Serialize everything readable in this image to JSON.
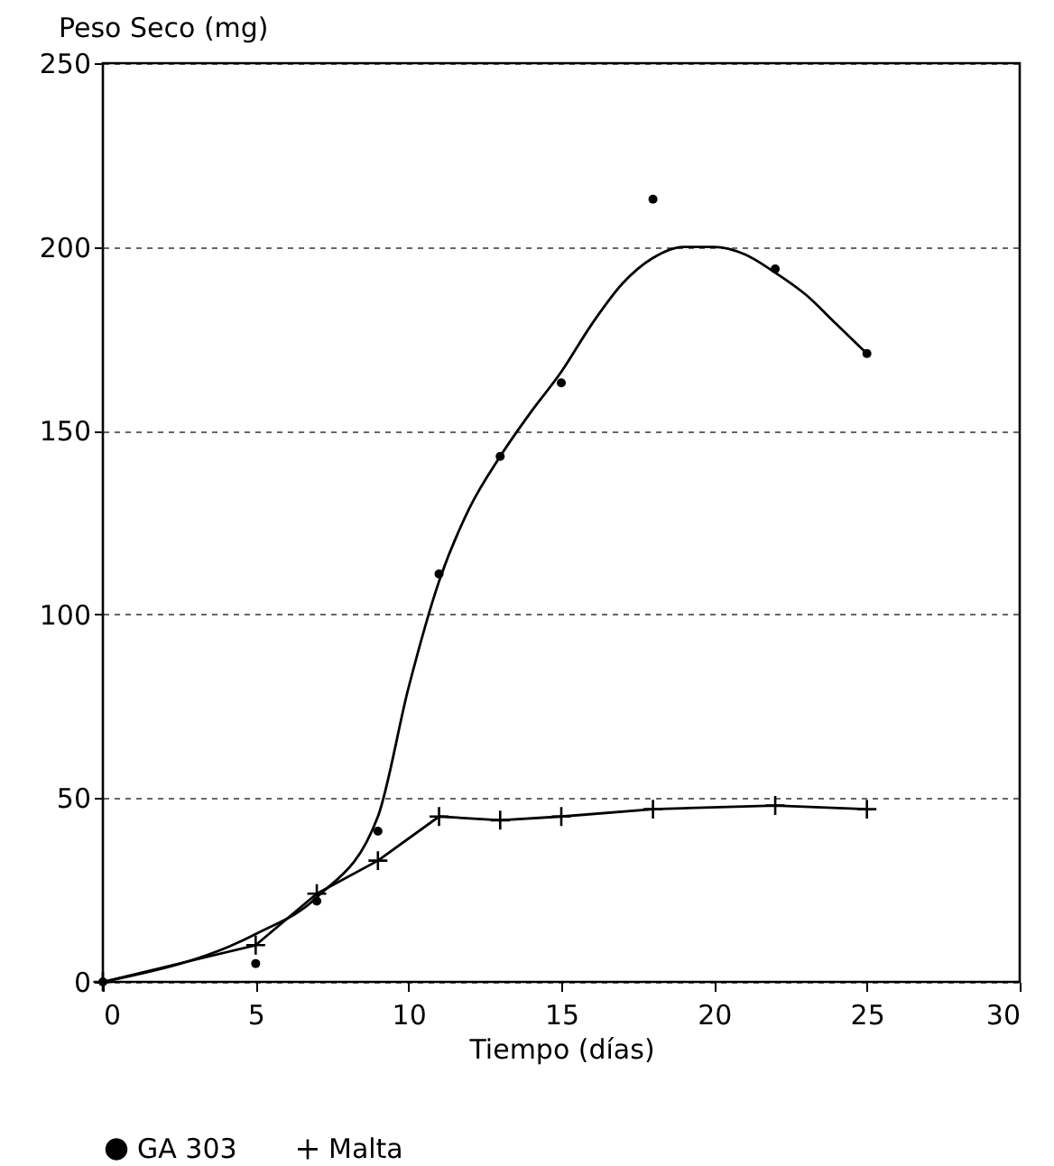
{
  "chart_data": {
    "type": "line",
    "xlabel": "Tiempo (días)",
    "ylabel": "Peso Seco (mg)",
    "xlim": [
      0,
      30
    ],
    "xticks": [
      0,
      5,
      10,
      15,
      20,
      25,
      30
    ],
    "ylim": [
      0,
      250
    ],
    "yticks": [
      0,
      50,
      100,
      150,
      200,
      250
    ],
    "grid": "y",
    "legend": "bottom",
    "series": [
      {
        "name": "GA 303",
        "type": "scatter",
        "marker": "circle",
        "color": "#000000",
        "x": [
          0,
          5,
          7,
          9,
          11,
          13,
          15,
          18,
          22,
          25
        ],
        "values": [
          0,
          5,
          22,
          41,
          111,
          143,
          163,
          213,
          194,
          171
        ]
      },
      {
        "marker": "none",
        "color": "#000000",
        "x": [
          0,
          5,
          7,
          9,
          10,
          11,
          12,
          13,
          14,
          15,
          16,
          17,
          18,
          19,
          20,
          21,
          22,
          23,
          24,
          25
        ],
        "values": [
          0,
          13,
          23,
          45,
          80,
          109,
          129,
          143,
          155,
          166,
          179,
          190,
          197,
          200,
          200,
          198,
          193,
          187,
          179,
          171
        ]
      },
      {
        "name": "Malta",
        "marker": "cross",
        "color": "#000000",
        "x": [
          0,
          5,
          7,
          9,
          11,
          13,
          15,
          18,
          22,
          25
        ],
        "values": [
          0,
          10,
          24,
          33,
          45,
          44,
          45,
          47,
          48,
          47
        ]
      }
    ]
  }
}
